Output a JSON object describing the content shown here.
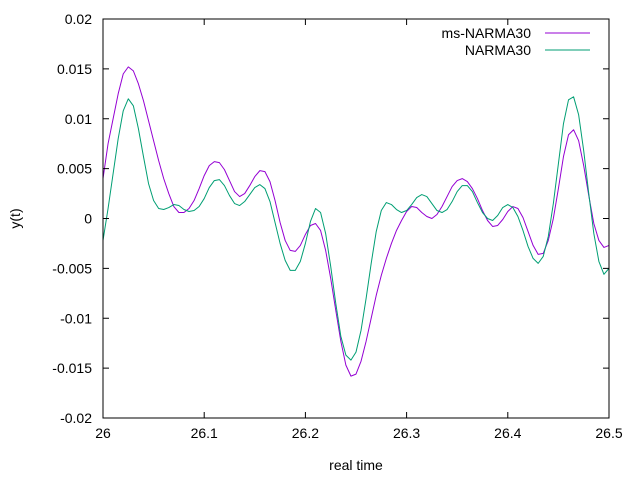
{
  "chart_data": {
    "type": "line",
    "xlabel": "real time",
    "ylabel": "y(t)",
    "xlim": [
      26,
      26.5
    ],
    "ylim": [
      -0.02,
      0.02
    ],
    "xticks": [
      26,
      26.1,
      26.2,
      26.3,
      26.4,
      26.5
    ],
    "xtick_labels": [
      "26",
      "26.1",
      "26.2",
      "26.3",
      "26.4",
      "26.5"
    ],
    "yticks": [
      -0.02,
      -0.015,
      -0.01,
      -0.005,
      0,
      0.005,
      0.01,
      0.015,
      0.02
    ],
    "ytick_labels": [
      "-0.02",
      "-0.015",
      "-0.01",
      "-0.005",
      "0",
      "0.005",
      "0.01",
      "0.015",
      "0.02"
    ],
    "grid": false,
    "legend_position": "top-right",
    "series": [
      {
        "name": "ms-NARMA30",
        "color": "#9400d3",
        "points": [
          [
            26.0,
            0.004
          ],
          [
            26.005,
            0.0075
          ],
          [
            26.01,
            0.01
          ],
          [
            26.015,
            0.0125
          ],
          [
            26.02,
            0.0145
          ],
          [
            26.025,
            0.0152
          ],
          [
            26.03,
            0.0148
          ],
          [
            26.035,
            0.0135
          ],
          [
            26.04,
            0.0118
          ],
          [
            26.045,
            0.0098
          ],
          [
            26.05,
            0.0078
          ],
          [
            26.055,
            0.0058
          ],
          [
            26.06,
            0.004
          ],
          [
            26.065,
            0.0025
          ],
          [
            26.07,
            0.0012
          ],
          [
            26.075,
            0.0006
          ],
          [
            26.08,
            0.0006
          ],
          [
            26.085,
            0.001
          ],
          [
            26.09,
            0.0018
          ],
          [
            26.095,
            0.003
          ],
          [
            26.1,
            0.0043
          ],
          [
            26.105,
            0.0053
          ],
          [
            26.11,
            0.0057
          ],
          [
            26.115,
            0.0056
          ],
          [
            26.12,
            0.0049
          ],
          [
            26.125,
            0.0038
          ],
          [
            26.13,
            0.0027
          ],
          [
            26.135,
            0.0022
          ],
          [
            26.14,
            0.0025
          ],
          [
            26.145,
            0.0033
          ],
          [
            26.15,
            0.0042
          ],
          [
            26.155,
            0.0048
          ],
          [
            26.16,
            0.0047
          ],
          [
            26.165,
            0.0037
          ],
          [
            26.17,
            0.0018
          ],
          [
            26.175,
            -0.0004
          ],
          [
            26.18,
            -0.0022
          ],
          [
            26.185,
            -0.0032
          ],
          [
            26.19,
            -0.0033
          ],
          [
            26.195,
            -0.0027
          ],
          [
            26.2,
            -0.0016
          ],
          [
            26.205,
            -0.0007
          ],
          [
            26.21,
            -0.0005
          ],
          [
            26.215,
            -0.0012
          ],
          [
            26.22,
            -0.0032
          ],
          [
            26.225,
            -0.006
          ],
          [
            26.23,
            -0.0092
          ],
          [
            26.235,
            -0.0123
          ],
          [
            26.24,
            -0.0147
          ],
          [
            26.245,
            -0.0158
          ],
          [
            26.25,
            -0.0156
          ],
          [
            26.255,
            -0.0143
          ],
          [
            26.26,
            -0.0123
          ],
          [
            26.265,
            -0.01
          ],
          [
            26.27,
            -0.0077
          ],
          [
            26.275,
            -0.0057
          ],
          [
            26.28,
            -0.004
          ],
          [
            26.285,
            -0.0025
          ],
          [
            26.29,
            -0.0012
          ],
          [
            26.295,
            -0.0002
          ],
          [
            26.3,
            0.0007
          ],
          [
            26.305,
            0.0012
          ],
          [
            26.31,
            0.0011
          ],
          [
            26.315,
            0.0006
          ],
          [
            26.32,
            0.0002
          ],
          [
            26.325,
            0.0
          ],
          [
            26.33,
            0.0004
          ],
          [
            26.335,
            0.0012
          ],
          [
            26.34,
            0.0022
          ],
          [
            26.345,
            0.0032
          ],
          [
            26.35,
            0.0038
          ],
          [
            26.355,
            0.004
          ],
          [
            26.36,
            0.0037
          ],
          [
            26.365,
            0.003
          ],
          [
            26.37,
            0.002
          ],
          [
            26.375,
            0.0008
          ],
          [
            26.38,
            -0.0002
          ],
          [
            26.385,
            -0.0008
          ],
          [
            26.39,
            -0.0007
          ],
          [
            26.395,
            -0.0001
          ],
          [
            26.4,
            0.0007
          ],
          [
            26.405,
            0.0012
          ],
          [
            26.41,
            0.001
          ],
          [
            26.415,
            0.0001
          ],
          [
            26.42,
            -0.0013
          ],
          [
            26.425,
            -0.0027
          ],
          [
            26.43,
            -0.0036
          ],
          [
            26.435,
            -0.0035
          ],
          [
            26.44,
            -0.0022
          ],
          [
            26.445,
            0.0
          ],
          [
            26.45,
            0.003
          ],
          [
            26.455,
            0.0062
          ],
          [
            26.46,
            0.0084
          ],
          [
            26.465,
            0.0089
          ],
          [
            26.47,
            0.0078
          ],
          [
            26.475,
            0.0053
          ],
          [
            26.48,
            0.0023
          ],
          [
            26.485,
            -0.0005
          ],
          [
            26.49,
            -0.0022
          ],
          [
            26.495,
            -0.0029
          ],
          [
            26.5,
            -0.0027
          ]
        ]
      },
      {
        "name": "NARMA30",
        "color": "#009e73",
        "points": [
          [
            26.0,
            -0.0022
          ],
          [
            26.005,
            0.001
          ],
          [
            26.01,
            0.0045
          ],
          [
            26.015,
            0.008
          ],
          [
            26.02,
            0.0108
          ],
          [
            26.025,
            0.012
          ],
          [
            26.03,
            0.0113
          ],
          [
            26.035,
            0.009
          ],
          [
            26.04,
            0.0062
          ],
          [
            26.045,
            0.0035
          ],
          [
            26.05,
            0.0018
          ],
          [
            26.055,
            0.001
          ],
          [
            26.06,
            0.0009
          ],
          [
            26.065,
            0.0011
          ],
          [
            26.07,
            0.0014
          ],
          [
            26.075,
            0.0013
          ],
          [
            26.08,
            0.0009
          ],
          [
            26.085,
            0.0007
          ],
          [
            26.09,
            0.0008
          ],
          [
            26.095,
            0.0012
          ],
          [
            26.1,
            0.002
          ],
          [
            26.105,
            0.0031
          ],
          [
            26.11,
            0.0038
          ],
          [
            26.115,
            0.0039
          ],
          [
            26.12,
            0.0033
          ],
          [
            26.125,
            0.0023
          ],
          [
            26.13,
            0.0015
          ],
          [
            26.135,
            0.0013
          ],
          [
            26.14,
            0.0017
          ],
          [
            26.145,
            0.0024
          ],
          [
            26.15,
            0.0031
          ],
          [
            26.155,
            0.0034
          ],
          [
            26.16,
            0.003
          ],
          [
            26.165,
            0.0017
          ],
          [
            26.17,
            -0.0004
          ],
          [
            26.175,
            -0.0025
          ],
          [
            26.18,
            -0.0042
          ],
          [
            26.185,
            -0.0052
          ],
          [
            26.19,
            -0.0052
          ],
          [
            26.195,
            -0.0043
          ],
          [
            26.2,
            -0.0025
          ],
          [
            26.205,
            -0.0003
          ],
          [
            26.21,
            0.001
          ],
          [
            26.215,
            0.0006
          ],
          [
            26.22,
            -0.0015
          ],
          [
            26.225,
            -0.0048
          ],
          [
            26.23,
            -0.0085
          ],
          [
            26.235,
            -0.0118
          ],
          [
            26.24,
            -0.0137
          ],
          [
            26.245,
            -0.0142
          ],
          [
            26.25,
            -0.0134
          ],
          [
            26.255,
            -0.0112
          ],
          [
            26.26,
            -0.008
          ],
          [
            26.265,
            -0.0045
          ],
          [
            26.27,
            -0.0013
          ],
          [
            26.275,
            0.0008
          ],
          [
            26.28,
            0.0016
          ],
          [
            26.285,
            0.0014
          ],
          [
            26.29,
            0.0009
          ],
          [
            26.295,
            0.0006
          ],
          [
            26.3,
            0.0008
          ],
          [
            26.305,
            0.0014
          ],
          [
            26.31,
            0.0021
          ],
          [
            26.315,
            0.0024
          ],
          [
            26.32,
            0.0022
          ],
          [
            26.325,
            0.0015
          ],
          [
            26.33,
            0.0008
          ],
          [
            26.335,
            0.0006
          ],
          [
            26.34,
            0.0009
          ],
          [
            26.345,
            0.0017
          ],
          [
            26.35,
            0.0027
          ],
          [
            26.355,
            0.0033
          ],
          [
            26.36,
            0.0033
          ],
          [
            26.365,
            0.0027
          ],
          [
            26.37,
            0.0016
          ],
          [
            26.375,
            0.0006
          ],
          [
            26.38,
            0.0
          ],
          [
            26.385,
            -0.0002
          ],
          [
            26.39,
            0.0003
          ],
          [
            26.395,
            0.0011
          ],
          [
            26.4,
            0.0014
          ],
          [
            26.405,
            0.0011
          ],
          [
            26.41,
            0.0002
          ],
          [
            26.415,
            -0.0012
          ],
          [
            26.42,
            -0.0028
          ],
          [
            26.425,
            -0.004
          ],
          [
            26.43,
            -0.0045
          ],
          [
            26.435,
            -0.0038
          ],
          [
            26.44,
            -0.0018
          ],
          [
            26.445,
            0.0015
          ],
          [
            26.45,
            0.0055
          ],
          [
            26.455,
            0.0095
          ],
          [
            26.46,
            0.0119
          ],
          [
            26.465,
            0.0122
          ],
          [
            26.47,
            0.0104
          ],
          [
            26.475,
            0.0068
          ],
          [
            26.48,
            0.0025
          ],
          [
            26.485,
            -0.0015
          ],
          [
            26.49,
            -0.0043
          ],
          [
            26.495,
            -0.0056
          ],
          [
            26.5,
            -0.005
          ]
        ]
      }
    ]
  }
}
